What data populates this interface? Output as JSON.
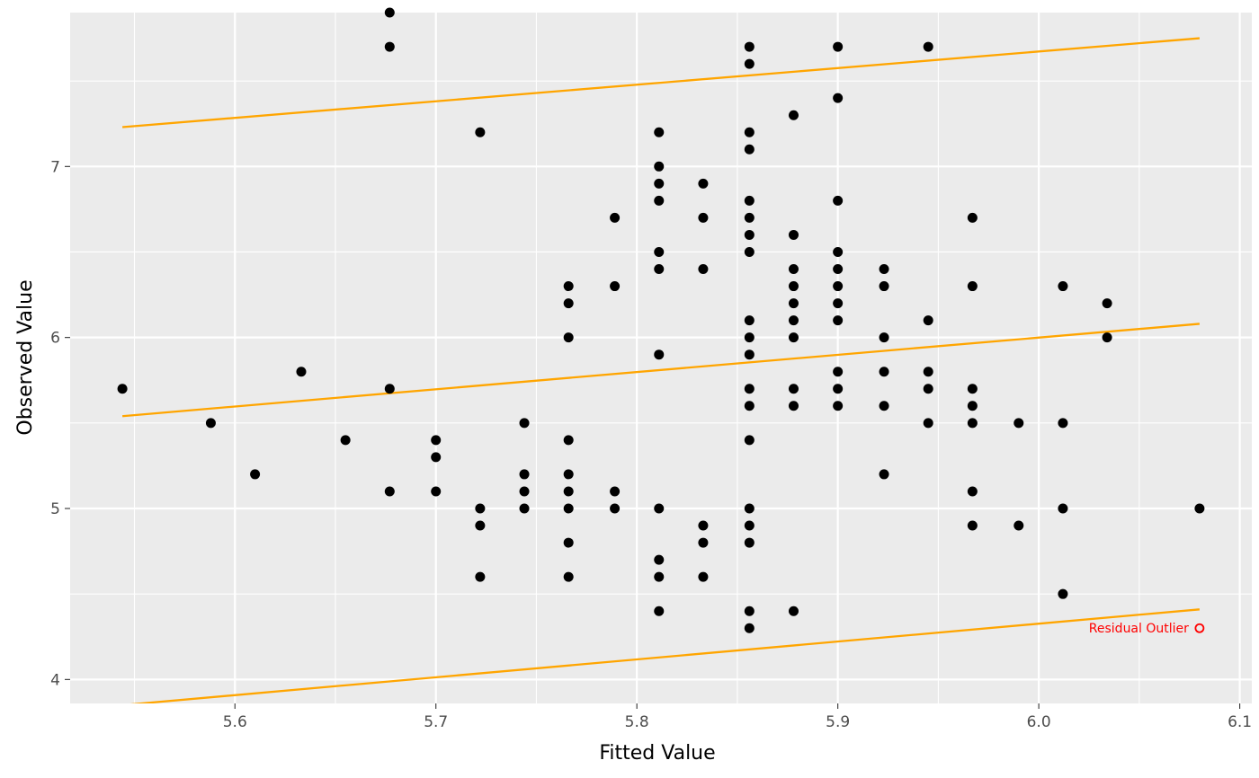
{
  "chart_data": {
    "type": "scatter",
    "xlabel": "Fitted Value",
    "ylabel": "Observed Value",
    "xlim": [
      5.518,
      6.106
    ],
    "ylim": [
      3.86,
      7.9
    ],
    "x_ticks": [
      5.6,
      5.7,
      5.8,
      5.9,
      6.0,
      6.1
    ],
    "x_tick_labels": [
      "5.6",
      "5.7",
      "5.8",
      "5.9",
      "6.0",
      "6.1"
    ],
    "y_ticks": [
      4,
      5,
      6,
      7
    ],
    "y_tick_labels": [
      "4",
      "5",
      "6",
      "7"
    ],
    "grid": true,
    "background": "#ebebeb",
    "point_color": "#000000",
    "line_color": "#ffa500",
    "outlier_color": "#ff0000",
    "points": [
      [
        5.544,
        5.7
      ],
      [
        5.588,
        5.5
      ],
      [
        5.61,
        5.2
      ],
      [
        5.633,
        5.8
      ],
      [
        5.655,
        5.4
      ],
      [
        5.677,
        7.9
      ],
      [
        5.677,
        7.7
      ],
      [
        5.677,
        5.7
      ],
      [
        5.677,
        5.1
      ],
      [
        5.7,
        5.4
      ],
      [
        5.7,
        5.3
      ],
      [
        5.7,
        5.1
      ],
      [
        5.722,
        7.2
      ],
      [
        5.722,
        5.0
      ],
      [
        5.722,
        4.9
      ],
      [
        5.722,
        4.6
      ],
      [
        5.744,
        5.5
      ],
      [
        5.744,
        5.2
      ],
      [
        5.744,
        5.1
      ],
      [
        5.744,
        5.0
      ],
      [
        5.766,
        6.3
      ],
      [
        5.766,
        6.2
      ],
      [
        5.766,
        6.0
      ],
      [
        5.766,
        5.4
      ],
      [
        5.766,
        5.2
      ],
      [
        5.766,
        5.1
      ],
      [
        5.766,
        5.0
      ],
      [
        5.766,
        4.8
      ],
      [
        5.766,
        4.6
      ],
      [
        5.789,
        6.7
      ],
      [
        5.789,
        6.3
      ],
      [
        5.789,
        5.1
      ],
      [
        5.789,
        5.0
      ],
      [
        5.811,
        7.2
      ],
      [
        5.811,
        7.0
      ],
      [
        5.811,
        6.9
      ],
      [
        5.811,
        6.8
      ],
      [
        5.811,
        6.5
      ],
      [
        5.811,
        6.4
      ],
      [
        5.811,
        5.9
      ],
      [
        5.811,
        5.0
      ],
      [
        5.811,
        4.7
      ],
      [
        5.811,
        4.6
      ],
      [
        5.811,
        4.4
      ],
      [
        5.833,
        6.9
      ],
      [
        5.833,
        6.7
      ],
      [
        5.833,
        6.4
      ],
      [
        5.833,
        4.9
      ],
      [
        5.833,
        4.8
      ],
      [
        5.833,
        4.6
      ],
      [
        5.856,
        7.7
      ],
      [
        5.856,
        7.6
      ],
      [
        5.856,
        7.2
      ],
      [
        5.856,
        7.1
      ],
      [
        5.856,
        6.8
      ],
      [
        5.856,
        6.7
      ],
      [
        5.856,
        6.6
      ],
      [
        5.856,
        6.5
      ],
      [
        5.856,
        6.1
      ],
      [
        5.856,
        6.0
      ],
      [
        5.856,
        5.9
      ],
      [
        5.856,
        5.7
      ],
      [
        5.856,
        5.6
      ],
      [
        5.856,
        5.4
      ],
      [
        5.856,
        5.0
      ],
      [
        5.856,
        4.9
      ],
      [
        5.856,
        4.8
      ],
      [
        5.856,
        4.4
      ],
      [
        5.856,
        4.3
      ],
      [
        5.878,
        7.3
      ],
      [
        5.878,
        6.6
      ],
      [
        5.878,
        6.4
      ],
      [
        5.878,
        6.3
      ],
      [
        5.878,
        6.2
      ],
      [
        5.878,
        6.1
      ],
      [
        5.878,
        6.0
      ],
      [
        5.878,
        5.7
      ],
      [
        5.878,
        5.6
      ],
      [
        5.878,
        4.4
      ],
      [
        5.9,
        7.7
      ],
      [
        5.9,
        7.4
      ],
      [
        5.9,
        6.8
      ],
      [
        5.9,
        6.5
      ],
      [
        5.9,
        6.4
      ],
      [
        5.9,
        6.3
      ],
      [
        5.9,
        6.2
      ],
      [
        5.9,
        6.1
      ],
      [
        5.9,
        5.8
      ],
      [
        5.9,
        5.7
      ],
      [
        5.9,
        5.6
      ],
      [
        5.923,
        6.4
      ],
      [
        5.923,
        6.3
      ],
      [
        5.923,
        6.0
      ],
      [
        5.923,
        5.8
      ],
      [
        5.923,
        5.6
      ],
      [
        5.923,
        5.2
      ],
      [
        5.945,
        7.7
      ],
      [
        5.945,
        6.1
      ],
      [
        5.945,
        5.8
      ],
      [
        5.945,
        5.7
      ],
      [
        5.945,
        5.5
      ],
      [
        5.967,
        6.7
      ],
      [
        5.967,
        6.3
      ],
      [
        5.967,
        5.7
      ],
      [
        5.967,
        5.6
      ],
      [
        5.967,
        5.5
      ],
      [
        5.967,
        5.1
      ],
      [
        5.967,
        4.9
      ],
      [
        5.99,
        5.5
      ],
      [
        5.99,
        4.9
      ],
      [
        6.012,
        6.3
      ],
      [
        6.012,
        5.5
      ],
      [
        6.012,
        5.0
      ],
      [
        6.012,
        4.5
      ],
      [
        6.034,
        6.2
      ],
      [
        6.034,
        6.0
      ],
      [
        6.08,
        5.0
      ]
    ],
    "lines": [
      {
        "values": [
          [
            5.544,
            7.23
          ],
          [
            6.08,
            7.75
          ]
        ]
      },
      {
        "values": [
          [
            5.544,
            5.54
          ],
          [
            6.08,
            6.08
          ]
        ]
      },
      {
        "values": [
          [
            5.544,
            3.85
          ],
          [
            6.08,
            4.41
          ]
        ]
      }
    ],
    "outlier": {
      "x": 6.08,
      "y": 4.3,
      "label": "Residual Outlier"
    }
  }
}
